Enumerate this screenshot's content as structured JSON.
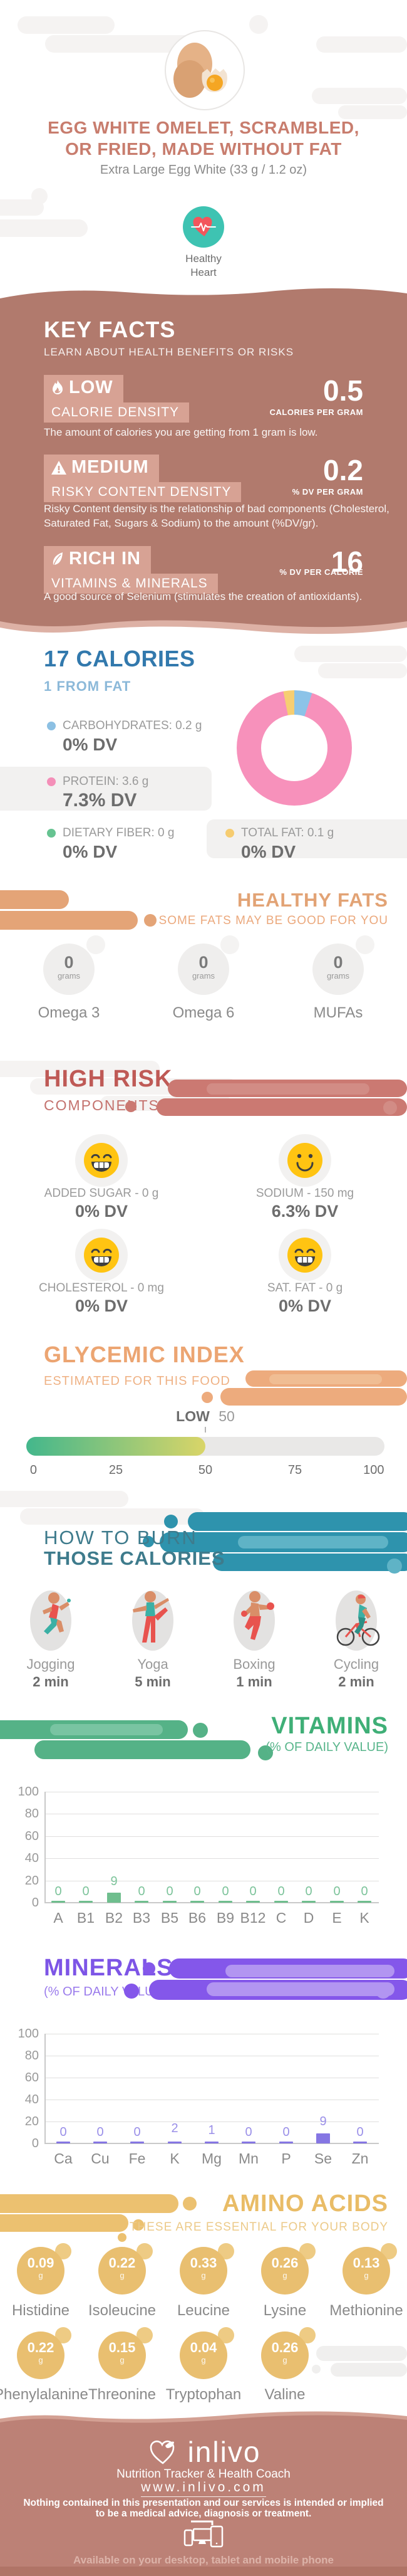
{
  "header": {
    "title_line1": "EGG WHITE OMELET, SCRAMBLED,",
    "title_line2": "OR FRIED, MADE WITHOUT FAT",
    "subtitle": "Extra Large Egg White (33 g / 1.2 oz)",
    "badge_line1": "Healthy",
    "badge_line2": "Heart"
  },
  "key_facts": {
    "title": "KEY FACTS",
    "subtitle": "LEARN ABOUT HEALTH BENEFITS OR RISKS",
    "facts": [
      {
        "level": "LOW",
        "label": "CALORIE DENSITY",
        "value": "0.5",
        "unit": "CALORIES PER GRAM",
        "description": "The amount of calories you are getting from 1 gram is low."
      },
      {
        "level": "MEDIUM",
        "label": "RISKY CONTENT DENSITY",
        "value": "0.2",
        "unit": "% DV PER GRAM",
        "description": "Risky Content density is the relationship of bad components (Cholesterol, Saturated Fat, Sugars & Sodium) to the amount (%DV/gr)."
      },
      {
        "level": "RICH  IN",
        "label": "VITAMINS & MINERALS",
        "value": "16",
        "unit": "% DV PER CALORIE",
        "description": "A good source of Selenium (stimulates the creation of antioxidants)."
      }
    ]
  },
  "calories": {
    "title": "17 CALORIES",
    "subtitle": "1 FROM FAT",
    "legend": [
      {
        "label": "CARBOHYDRATES: 0.2 g",
        "dv": "0% DV",
        "color": "#8cc0e3"
      },
      {
        "label": "PROTEIN: 3.6 g",
        "dv": "7.3% DV",
        "color": "#f48fb8"
      },
      {
        "label": "DIETARY FIBER: 0 g",
        "dv": "0% DV",
        "color": "#66c391"
      },
      {
        "label": "TOTAL FAT: 0.1 g",
        "dv": "0% DV",
        "color": "#f6cc70"
      }
    ]
  },
  "healthy_fats": {
    "title": "HEALTHY FATS",
    "subtitle": "SOME FATS MAY BE GOOD FOR YOU",
    "items": [
      {
        "value": "0",
        "unit": "grams",
        "label": "Omega 3"
      },
      {
        "value": "0",
        "unit": "grams",
        "label": "Omega 6"
      },
      {
        "value": "0",
        "unit": "grams",
        "label": "MUFAs"
      }
    ]
  },
  "high_risk": {
    "title": "HIGH RISK",
    "subtitle": "COMPONENTS",
    "items": [
      {
        "label": "ADDED SUGAR - 0 g",
        "dv": "0% DV",
        "mood": "grin"
      },
      {
        "label": "SODIUM - 150 mg",
        "dv": "6.3% DV",
        "mood": "smile"
      },
      {
        "label": "CHOLESTEROL - 0 mg",
        "dv": "0% DV",
        "mood": "grin"
      },
      {
        "label": "SAT. FAT - 0 g",
        "dv": "0% DV",
        "mood": "grin"
      }
    ]
  },
  "glycemic": {
    "title": "GLYCEMIC INDEX",
    "subtitle": "ESTIMATED FOR THIS FOOD",
    "level_label": "LOW"
  },
  "burn": {
    "title_line1": "HOW TO BURN",
    "title_line2": "THOSE CALORIES",
    "activities": [
      {
        "name": "Jogging",
        "duration": "2 min"
      },
      {
        "name": "Yoga",
        "duration": "5 min"
      },
      {
        "name": "Boxing",
        "duration": "1 min"
      },
      {
        "name": "Cycling",
        "duration": "2 min"
      }
    ]
  },
  "vitamins_section": {
    "title": "VITAMINS",
    "subtitle": "(% OF DAILY VALUE)"
  },
  "minerals_section": {
    "title": "MINERALS",
    "subtitle": "(% OF DAILY VALUE)"
  },
  "amino_acids": {
    "title": "AMINO ACIDS",
    "subtitle": "THESE ARE ESSENTIAL FOR YOUR BODY",
    "items": [
      {
        "value": "0.09",
        "unit": "g",
        "label": "Histidine"
      },
      {
        "value": "0.22",
        "unit": "g",
        "label": "Isoleucine"
      },
      {
        "value": "0.33",
        "unit": "g",
        "label": "Leucine"
      },
      {
        "value": "0.26",
        "unit": "g",
        "label": "Lysine"
      },
      {
        "value": "0.13",
        "unit": "g",
        "label": "Methionine"
      },
      {
        "value": "0.22",
        "unit": "g",
        "label": "Phenylalanine"
      },
      {
        "value": "0.15",
        "unit": "g",
        "label": "Threonine"
      },
      {
        "value": "0.04",
        "unit": "g",
        "label": "Tryptophan"
      },
      {
        "value": "0.26",
        "unit": "g",
        "label": "Valine"
      }
    ]
  },
  "footer": {
    "brand": "inlivo",
    "tagline": "Nutrition Tracker & Health Coach",
    "url": "www.inlivo.com",
    "disclaimer_line1": "Nothing contained in this presentation and our services is intended or implied",
    "disclaimer_line2": "to be a medical advice, diagnosis or treatment.",
    "availability": "Available on your desktop, tablet and mobile phone"
  },
  "chart_data": [
    {
      "type": "pie",
      "title": "Calorie breakdown (17 calories, 1 from fat)",
      "labels": [
        "Carbohydrates",
        "Protein",
        "Dietary Fiber",
        "Total Fat"
      ],
      "values_g": [
        0.2,
        3.6,
        0,
        0.1
      ],
      "dv_percent": [
        "0% DV",
        "7.3% DV",
        "0% DV",
        "0% DV"
      ],
      "colors": [
        "#8cc3e8",
        "#f791bb",
        "#66c391",
        "#f6ce72"
      ],
      "segments": [
        {
          "name": "carbohydrates",
          "color": "#8cc3e8",
          "from": 0,
          "to": 18
        },
        {
          "name": "protein",
          "color": "#f791bb",
          "from": 18,
          "to": 349
        },
        {
          "name": "total_fat",
          "color": "#f6ce72",
          "from": 349,
          "to": 360
        }
      ]
    },
    {
      "type": "gauge",
      "title": "Glycemic Index",
      "value": 50,
      "label": "LOW",
      "range": [
        0,
        100
      ],
      "ticks": [
        "0",
        "25",
        "50",
        "75",
        "100"
      ]
    },
    {
      "type": "bar",
      "title": "VITAMINS (% OF DAILY VALUE)",
      "categories": [
        "A",
        "B1",
        "B2",
        "B3",
        "B5",
        "B6",
        "B9",
        "B12",
        "C",
        "D",
        "E",
        "K"
      ],
      "values": [
        0,
        0,
        9,
        0,
        0,
        0,
        0,
        0,
        0,
        0,
        0,
        0
      ],
      "ylim": [
        0,
        100
      ],
      "yticks": [
        100,
        80,
        60,
        40,
        20,
        0
      ],
      "color": "#6fbe8e",
      "grid": true,
      "legend": "none"
    },
    {
      "type": "bar",
      "title": "MINERALS (% OF DAILY VALUE)",
      "categories": [
        "Ca",
        "Cu",
        "Fe",
        "K",
        "Mg",
        "Mn",
        "P",
        "Se",
        "Zn"
      ],
      "values": [
        0,
        0,
        0,
        2,
        1,
        0,
        0,
        9,
        0
      ],
      "ylim": [
        0,
        100
      ],
      "yticks": [
        100,
        80,
        60,
        40,
        20,
        0
      ],
      "color": "#8576e3",
      "grid": true,
      "legend": "none"
    }
  ]
}
